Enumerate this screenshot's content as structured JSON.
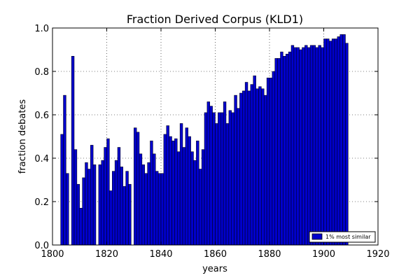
{
  "chart_data": {
    "type": "bar",
    "title": "Fraction Derived Corpus (KLD1)",
    "xlabel": "years",
    "ylabel": "fraction debates",
    "xlim": [
      1800,
      1920
    ],
    "ylim": [
      0.0,
      1.0
    ],
    "xticks": [
      "1800",
      "1820",
      "1840",
      "1860",
      "1880",
      "1900",
      "1920"
    ],
    "yticks": [
      "0.0",
      "0.2",
      "0.4",
      "0.6",
      "0.8",
      "1.0"
    ],
    "grid": true,
    "legend_position": "bottom-right",
    "bar_color": "#0000cc",
    "bar_edge_color": "#000000",
    "series": [
      {
        "name": "1% most similar",
        "x": [
          1803,
          1804,
          1805,
          1806,
          1807,
          1808,
          1809,
          1810,
          1811,
          1812,
          1813,
          1814,
          1815,
          1816,
          1817,
          1818,
          1819,
          1820,
          1821,
          1822,
          1823,
          1824,
          1825,
          1826,
          1827,
          1828,
          1829,
          1830,
          1831,
          1832,
          1833,
          1834,
          1835,
          1836,
          1837,
          1838,
          1839,
          1840,
          1841,
          1842,
          1843,
          1844,
          1845,
          1846,
          1847,
          1848,
          1849,
          1850,
          1851,
          1852,
          1853,
          1854,
          1855,
          1856,
          1857,
          1858,
          1859,
          1860,
          1861,
          1862,
          1863,
          1864,
          1865,
          1866,
          1867,
          1868,
          1869,
          1870,
          1871,
          1872,
          1873,
          1874,
          1875,
          1876,
          1877,
          1878,
          1879,
          1880,
          1881,
          1882,
          1883,
          1884,
          1885,
          1886,
          1887,
          1888,
          1889,
          1890,
          1891,
          1892,
          1893,
          1894,
          1895,
          1896,
          1897,
          1898,
          1899,
          1900,
          1901,
          1902,
          1903,
          1904,
          1905,
          1906,
          1907,
          1908
        ],
        "values": [
          0.51,
          0.69,
          0.33,
          0.0,
          0.87,
          0.44,
          0.28,
          0.17,
          0.31,
          0.38,
          0.35,
          0.46,
          0.37,
          0.0,
          0.37,
          0.39,
          0.45,
          0.49,
          0.25,
          0.34,
          0.39,
          0.45,
          0.36,
          0.27,
          0.34,
          0.28,
          0.0,
          0.54,
          0.52,
          0.42,
          0.37,
          0.33,
          0.38,
          0.48,
          0.42,
          0.34,
          0.33,
          0.33,
          0.51,
          0.55,
          0.5,
          0.48,
          0.49,
          0.43,
          0.56,
          0.45,
          0.54,
          0.5,
          0.43,
          0.39,
          0.48,
          0.35,
          0.44,
          0.61,
          0.66,
          0.64,
          0.61,
          0.56,
          0.61,
          0.61,
          0.66,
          0.56,
          0.62,
          0.61,
          0.69,
          0.63,
          0.7,
          0.71,
          0.75,
          0.71,
          0.74,
          0.78,
          0.72,
          0.73,
          0.72,
          0.69,
          0.77,
          0.77,
          0.8,
          0.86,
          0.86,
          0.89,
          0.87,
          0.88,
          0.89,
          0.92,
          0.91,
          0.91,
          0.9,
          0.91,
          0.92,
          0.91,
          0.92,
          0.92,
          0.91,
          0.92,
          0.91,
          0.95,
          0.95,
          0.94,
          0.95,
          0.95,
          0.96,
          0.97,
          0.97,
          0.93
        ]
      }
    ]
  }
}
